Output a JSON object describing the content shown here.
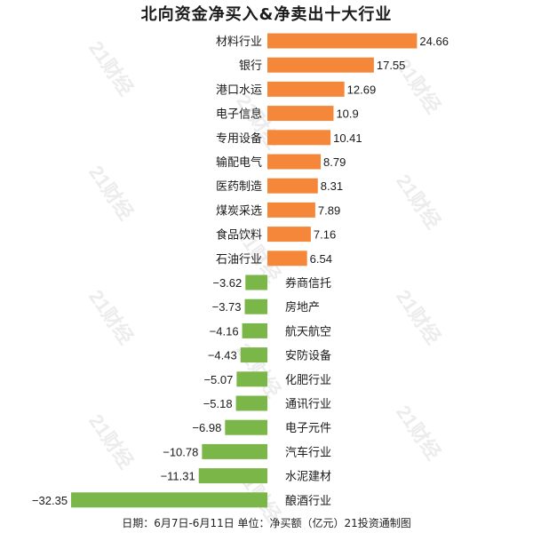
{
  "title": "北向资金净买入&净卖出十大行业",
  "footer": "日期：6月7日-6月11日 单位：净买额（亿元）21投资通制图",
  "watermark": "21财经",
  "colors": {
    "positive": "#f5873a",
    "negative": "#7ab648",
    "text": "#1a1a1a",
    "background": "#ffffff"
  },
  "chart_data": {
    "type": "bar",
    "orientation": "horizontal",
    "unit": "亿元",
    "categories": [
      "材料行业",
      "银行",
      "港口水运",
      "电子信息",
      "专用设备",
      "输配电气",
      "医药制造",
      "煤炭采选",
      "食品饮料",
      "石油行业",
      "券商信托",
      "房地产",
      "航天航空",
      "安防设备",
      "化肥行业",
      "通讯行业",
      "电子元件",
      "汽车行业",
      "水泥建材",
      "酿酒行业"
    ],
    "values": [
      24.66,
      17.55,
      12.69,
      10.9,
      10.41,
      8.79,
      8.31,
      7.89,
      7.16,
      6.54,
      -3.62,
      -3.73,
      -4.16,
      -4.43,
      -5.07,
      -5.18,
      -6.98,
      -10.78,
      -11.31,
      -32.35
    ],
    "value_labels": [
      "24.66",
      "17.55",
      "12.69",
      "10.9",
      "10.41",
      "8.79",
      "8.31",
      "7.89",
      "7.16",
      "6.54",
      "−3.62",
      "−3.73",
      "−4.16",
      "−4.43",
      "−5.07",
      "−5.18",
      "−6.98",
      "−10.78",
      "−11.31",
      "−32.35"
    ],
    "xlim": [
      -32.35,
      24.66
    ],
    "grid": false,
    "legend": "none"
  }
}
